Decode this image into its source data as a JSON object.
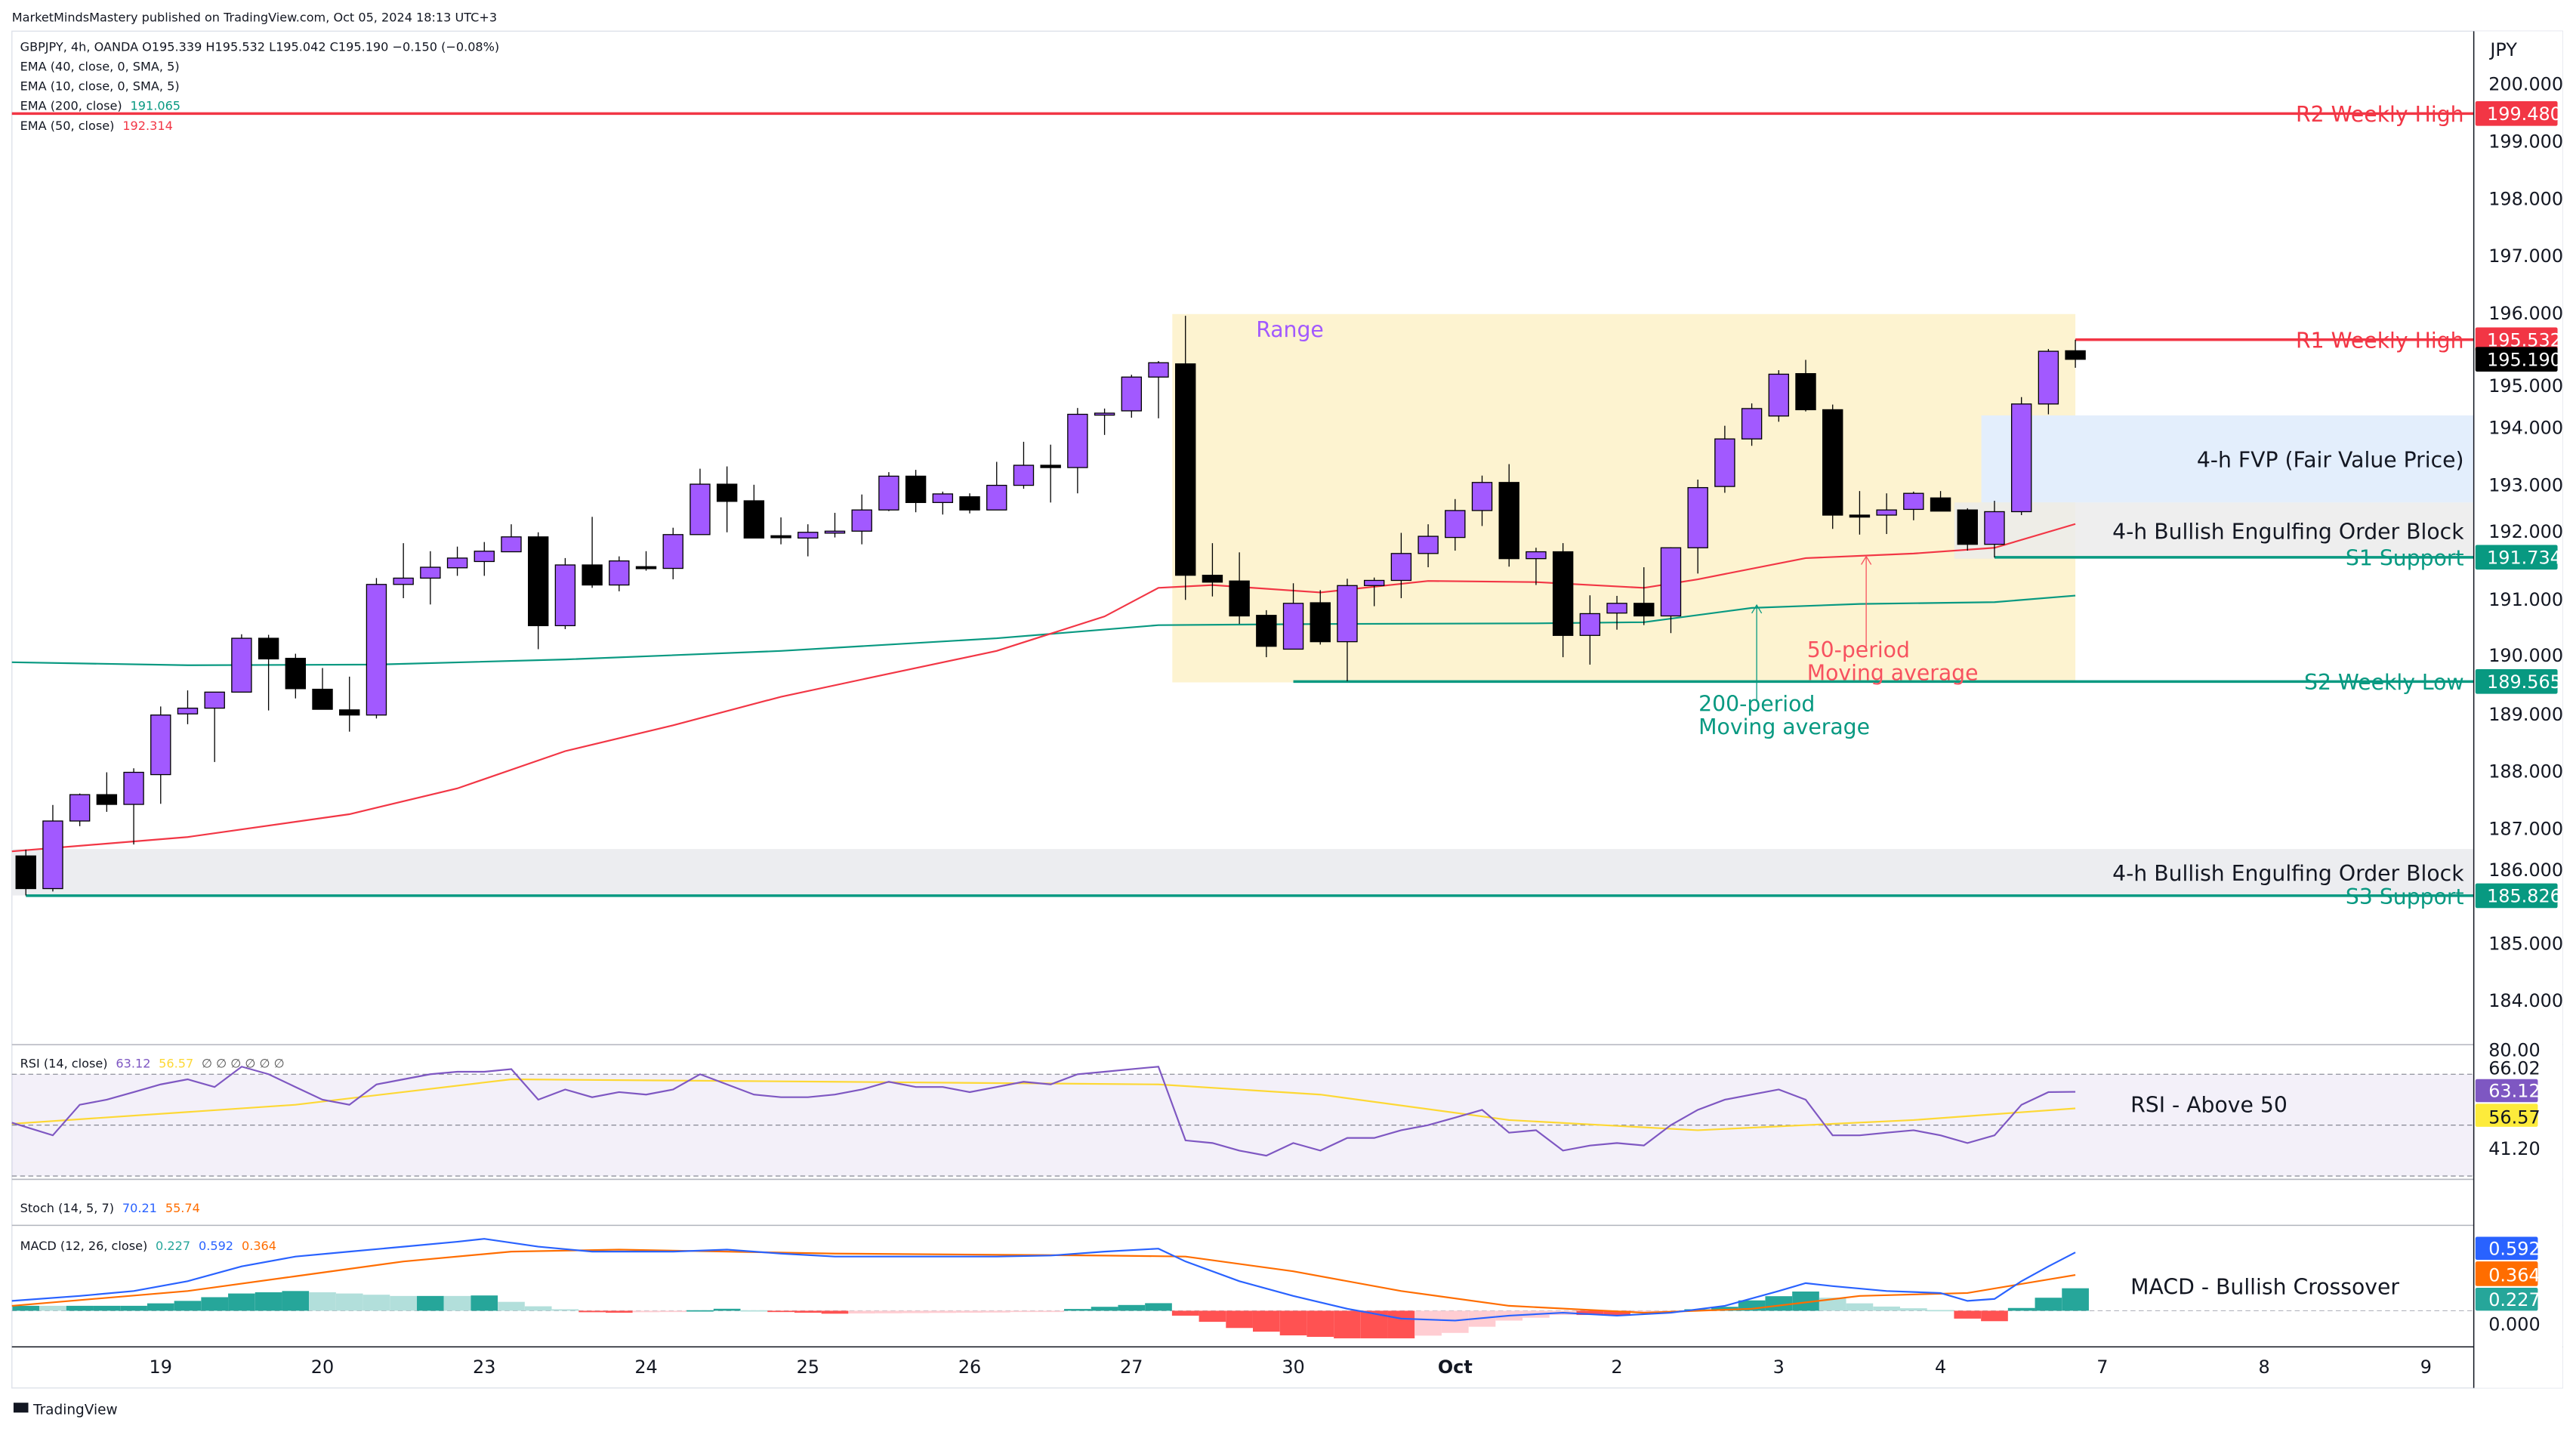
{
  "header": {
    "publisher": "MarketMindsMastery published on TradingView.com, Oct 05, 2024 18:13 UTC+3",
    "symbol_line": "GBPJPY, 4h, OANDA  O195.339  H195.532  L195.042  C195.190  −0.150 (−0.08%)",
    "indicators": [
      {
        "label": "EMA (40, close, 0, SMA, 5)",
        "value": ""
      },
      {
        "label": "EMA (10, close, 0, SMA, 5)",
        "value": ""
      },
      {
        "label": "EMA (200, close)",
        "value": "191.065",
        "color": "#089981"
      },
      {
        "label": "EMA (50, close)",
        "value": "192.314",
        "color": "#f23645"
      }
    ]
  },
  "price_axis": {
    "currency": "JPY",
    "ticks": [
      "184.000",
      "185.000",
      "186.000",
      "187.000",
      "188.000",
      "189.000",
      "190.000",
      "191.000",
      "192.000",
      "193.000",
      "194.000",
      "195.000",
      "196.000",
      "197.000",
      "198.000",
      "199.000",
      "200.000"
    ],
    "badges": [
      {
        "value": "199.480",
        "color": "#f23645"
      },
      {
        "value": "195.532",
        "color": "#f23645"
      },
      {
        "value": "195.190",
        "color": "#000000"
      },
      {
        "value": "191.734",
        "color": "#089981"
      },
      {
        "value": "189.565",
        "color": "#089981"
      },
      {
        "value": "185.826",
        "color": "#089981"
      }
    ]
  },
  "levels": [
    {
      "label": "R2 Weekly High",
      "price": 199.48,
      "color": "#f23645",
      "from_bar": -1
    },
    {
      "label": "R1 Weekly High",
      "price": 195.532,
      "color": "#f23645",
      "from_bar": 76
    },
    {
      "label": "S1 Support",
      "price": 191.734,
      "color": "#089981",
      "from_bar": 73
    },
    {
      "label": "S2 Weekly Low",
      "price": 189.565,
      "color": "#089981",
      "from_bar": 47
    },
    {
      "label": "S3 Support",
      "price": 185.826,
      "color": "#089981",
      "from_bar": 0
    }
  ],
  "zones": [
    {
      "label": "Range",
      "top": 195.98,
      "bottom": 189.55,
      "from_bar": 43,
      "to_bar": 76,
      "color": "#fdf3d0",
      "text_color": "#a259ff"
    },
    {
      "label": "4-h FVP (Fair Value Price)",
      "top": 194.21,
      "bottom": 192.69,
      "from_bar": 73,
      "color": "#e3eefc",
      "text_color": "#131722"
    },
    {
      "label": "4-h Bullish Engulfing Order Block",
      "top": 192.69,
      "bottom": 191.71,
      "from_bar": 72,
      "color": "#ebebeb",
      "text_color": "#131722"
    },
    {
      "label": "4-h Bullish Engulfing Order Block",
      "top": 186.64,
      "bottom": 185.83,
      "from_bar": -1,
      "color": "#ecedf0",
      "text_color": "#131722"
    }
  ],
  "annotations": [
    {
      "line1": "50-period",
      "line2": "Moving average",
      "color": "#f7525f",
      "bar": 68,
      "arrow_to": 191.75
    },
    {
      "line1": "200-period",
      "line2": "Moving average",
      "color": "#089981",
      "bar": 64,
      "arrow_to": 190.9
    }
  ],
  "time_axis": [
    {
      "label": "19",
      "bar": 5
    },
    {
      "label": "20",
      "bar": 11
    },
    {
      "label": "23",
      "bar": 17
    },
    {
      "label": "24",
      "bar": 23
    },
    {
      "label": "25",
      "bar": 29
    },
    {
      "label": "26",
      "bar": 35
    },
    {
      "label": "27",
      "bar": 41
    },
    {
      "label": "30",
      "bar": 47
    },
    {
      "label": "Oct",
      "bar": 53
    },
    {
      "label": "2",
      "bar": 59
    },
    {
      "label": "3",
      "bar": 65
    },
    {
      "label": "4",
      "bar": 71
    },
    {
      "label": "7",
      "bar": 77
    },
    {
      "label": "8",
      "bar": 83
    },
    {
      "label": "9",
      "bar": 89
    }
  ],
  "chart_data": {
    "type": "candlestick",
    "up_color": "#a259ff",
    "down_color": "#000000",
    "ohlc": [
      [
        186.52,
        186.63,
        185.83,
        185.95
      ],
      [
        185.95,
        187.41,
        185.9,
        187.13
      ],
      [
        187.13,
        187.61,
        187.04,
        187.59
      ],
      [
        187.59,
        187.98,
        187.29,
        187.42
      ],
      [
        187.42,
        188.05,
        186.72,
        187.98
      ],
      [
        187.94,
        189.13,
        187.43,
        188.98
      ],
      [
        189.0,
        189.41,
        188.82,
        189.1
      ],
      [
        189.1,
        189.38,
        188.16,
        189.38
      ],
      [
        189.38,
        190.39,
        189.38,
        190.32
      ],
      [
        190.32,
        190.38,
        189.06,
        189.96
      ],
      [
        189.97,
        190.05,
        189.27,
        189.44
      ],
      [
        189.43,
        189.8,
        189.08,
        189.08
      ],
      [
        189.07,
        189.65,
        188.69,
        188.98
      ],
      [
        188.98,
        191.37,
        188.92,
        191.26
      ],
      [
        191.26,
        191.98,
        191.02,
        191.37
      ],
      [
        191.37,
        191.84,
        190.91,
        191.56
      ],
      [
        191.55,
        191.92,
        191.41,
        191.72
      ],
      [
        191.66,
        192.0,
        191.41,
        191.84
      ],
      [
        191.83,
        192.31,
        191.83,
        192.09
      ],
      [
        192.09,
        192.17,
        190.13,
        190.54
      ],
      [
        190.54,
        191.72,
        190.48,
        191.6
      ],
      [
        191.6,
        192.44,
        191.2,
        191.25
      ],
      [
        191.25,
        191.75,
        191.14,
        191.67
      ],
      [
        191.57,
        191.84,
        191.5,
        191.54
      ],
      [
        191.54,
        192.25,
        191.35,
        192.13
      ],
      [
        192.13,
        193.28,
        192.13,
        193.01
      ],
      [
        193.01,
        193.32,
        192.17,
        192.71
      ],
      [
        192.72,
        193.0,
        192.07,
        192.07
      ],
      [
        192.11,
        192.43,
        191.96,
        192.09
      ],
      [
        192.07,
        192.31,
        191.75,
        192.17
      ],
      [
        192.17,
        192.51,
        192.08,
        192.19
      ],
      [
        192.19,
        192.83,
        191.96,
        192.56
      ],
      [
        192.56,
        193.22,
        192.54,
        193.15
      ],
      [
        193.15,
        193.26,
        192.52,
        192.69
      ],
      [
        192.69,
        192.88,
        192.48,
        192.84
      ],
      [
        192.79,
        192.85,
        192.5,
        192.56
      ],
      [
        192.56,
        193.4,
        192.56,
        192.99
      ],
      [
        192.99,
        193.75,
        192.93,
        193.34
      ],
      [
        193.34,
        193.7,
        192.69,
        193.3
      ],
      [
        193.3,
        194.34,
        192.85,
        194.23
      ],
      [
        194.23,
        194.33,
        193.87,
        194.25
      ],
      [
        194.29,
        194.92,
        194.17,
        194.88
      ],
      [
        194.88,
        195.16,
        194.16,
        195.13
      ],
      [
        195.11,
        195.95,
        190.99,
        191.42
      ],
      [
        191.42,
        191.98,
        191.05,
        191.3
      ],
      [
        191.32,
        191.82,
        190.57,
        190.71
      ],
      [
        190.72,
        190.81,
        189.99,
        190.18
      ],
      [
        190.13,
        191.28,
        190.13,
        190.93
      ],
      [
        190.94,
        191.16,
        190.21,
        190.26
      ],
      [
        190.26,
        191.36,
        189.57,
        191.24
      ],
      [
        191.24,
        191.38,
        190.88,
        191.33
      ],
      [
        191.33,
        192.16,
        191.02,
        191.8
      ],
      [
        191.8,
        192.31,
        191.56,
        192.1
      ],
      [
        192.08,
        192.75,
        191.85,
        192.55
      ],
      [
        192.55,
        193.16,
        192.28,
        193.04
      ],
      [
        193.04,
        193.36,
        191.57,
        191.71
      ],
      [
        191.71,
        191.9,
        191.25,
        191.83
      ],
      [
        191.83,
        191.98,
        189.99,
        190.37
      ],
      [
        190.37,
        191.07,
        189.86,
        190.75
      ],
      [
        190.76,
        191.06,
        190.47,
        190.93
      ],
      [
        190.93,
        191.56,
        190.55,
        190.71
      ],
      [
        190.71,
        191.91,
        190.41,
        191.9
      ],
      [
        191.9,
        193.09,
        191.45,
        192.95
      ],
      [
        192.97,
        194.03,
        192.86,
        193.8
      ],
      [
        193.8,
        194.42,
        193.68,
        194.33
      ],
      [
        194.2,
        195.0,
        194.1,
        194.93
      ],
      [
        194.94,
        195.18,
        194.28,
        194.31
      ],
      [
        194.31,
        194.4,
        192.23,
        192.47
      ],
      [
        192.47,
        192.89,
        192.13,
        192.46
      ],
      [
        192.47,
        192.85,
        192.14,
        192.56
      ],
      [
        192.57,
        192.88,
        192.38,
        192.85
      ],
      [
        192.77,
        192.89,
        192.54,
        192.54
      ],
      [
        192.56,
        192.59,
        191.85,
        191.96
      ],
      [
        191.96,
        192.72,
        191.73,
        192.53
      ],
      [
        192.53,
        194.53,
        192.47,
        194.41
      ],
      [
        194.41,
        195.37,
        194.23,
        195.33
      ],
      [
        195.339,
        195.532,
        195.042,
        195.19
      ]
    ],
    "ema50": [
      [
        0,
        186.6
      ],
      [
        6,
        186.85
      ],
      [
        12,
        187.25
      ],
      [
        16,
        187.7
      ],
      [
        20,
        188.35
      ],
      [
        24,
        188.8
      ],
      [
        28,
        189.3
      ],
      [
        32,
        189.7
      ],
      [
        36,
        190.1
      ],
      [
        40,
        190.7
      ],
      [
        42,
        191.2
      ],
      [
        44,
        191.25
      ],
      [
        48,
        191.12
      ],
      [
        52,
        191.32
      ],
      [
        56,
        191.3
      ],
      [
        60,
        191.2
      ],
      [
        62,
        191.35
      ],
      [
        66,
        191.72
      ],
      [
        70,
        191.8
      ],
      [
        73,
        191.9
      ],
      [
        76,
        192.314
      ]
    ],
    "ema200": [
      [
        0,
        189.9
      ],
      [
        6,
        189.85
      ],
      [
        13,
        189.86
      ],
      [
        20,
        189.95
      ],
      [
        28,
        190.1
      ],
      [
        36,
        190.32
      ],
      [
        42,
        190.55
      ],
      [
        48,
        190.57
      ],
      [
        56,
        190.58
      ],
      [
        60,
        190.6
      ],
      [
        64,
        190.85
      ],
      [
        68,
        190.92
      ],
      [
        73,
        190.95
      ],
      [
        76,
        191.065
      ]
    ],
    "rsi": {
      "label": "RSI (14, close)",
      "value": "63.12",
      "ma_value": "56.57",
      "extra": "∅ ∅ ∅ ∅ ∅ ∅",
      "note": "RSI - Above 50",
      "levels": [
        70,
        50,
        30
      ],
      "line_color": "#7e57c2",
      "ma_color": "#fdd835",
      "axis_ticks": [
        "80.00",
        "66.02",
        "41.20"
      ],
      "values": [
        51,
        46,
        58,
        60,
        63,
        66,
        68,
        65,
        73,
        70,
        65,
        60,
        58,
        66,
        68,
        70,
        71,
        71,
        72,
        60,
        64,
        61,
        63,
        62,
        64,
        70,
        66,
        62,
        61,
        61,
        62,
        64,
        67,
        65,
        65,
        63,
        65,
        67,
        66,
        70,
        71,
        72,
        73,
        44,
        43,
        40,
        38,
        43,
        40,
        45,
        45,
        48,
        50,
        53,
        56,
        47,
        48,
        40,
        42,
        43,
        42,
        50,
        56,
        60,
        62,
        64,
        60,
        46,
        46,
        47,
        48,
        46,
        43,
        46,
        58,
        63,
        63.12
      ],
      "ma": [
        [
          0,
          50.5
        ],
        [
          10,
          58
        ],
        [
          18,
          68
        ],
        [
          30,
          67
        ],
        [
          42,
          66
        ],
        [
          48,
          62
        ],
        [
          55,
          52
        ],
        [
          62,
          48
        ],
        [
          70,
          52
        ],
        [
          76,
          56.57
        ]
      ]
    },
    "stoch": {
      "label": "Stoch (14, 5, 7)",
      "k": "70.21",
      "d": "55.74",
      "k_color": "#2962ff",
      "d_color": "#ff6d00"
    },
    "macd": {
      "label": "MACD (12, 26, close)",
      "hist_value": "0.227",
      "macd_value": "0.592",
      "signal_value": "0.364",
      "note": "MACD - Bullish Crossover",
      "axis_tick": "0.000",
      "macd_color": "#2962ff",
      "signal_color": "#ff6d00",
      "macd": [
        [
          0,
          0.1
        ],
        [
          2,
          0.15
        ],
        [
          4,
          0.2
        ],
        [
          6,
          0.3
        ],
        [
          8,
          0.45
        ],
        [
          10,
          0.55
        ],
        [
          12,
          0.6
        ],
        [
          14,
          0.65
        ],
        [
          16,
          0.7
        ],
        [
          17,
          0.73
        ],
        [
          19,
          0.65
        ],
        [
          21,
          0.6
        ],
        [
          24,
          0.6
        ],
        [
          26,
          0.62
        ],
        [
          28,
          0.58
        ],
        [
          30,
          0.55
        ],
        [
          36,
          0.55
        ],
        [
          38,
          0.56
        ],
        [
          40,
          0.6
        ],
        [
          42,
          0.63
        ],
        [
          43,
          0.5
        ],
        [
          45,
          0.3
        ],
        [
          47,
          0.15
        ],
        [
          49,
          0.02
        ],
        [
          51,
          -0.08
        ],
        [
          53,
          -0.1
        ],
        [
          55,
          -0.05
        ],
        [
          57,
          -0.02
        ],
        [
          59,
          -0.05
        ],
        [
          61,
          -0.02
        ],
        [
          63,
          0.05
        ],
        [
          65,
          0.2
        ],
        [
          66,
          0.28
        ],
        [
          67,
          0.25
        ],
        [
          69,
          0.2
        ],
        [
          71,
          0.18
        ],
        [
          72,
          0.1
        ],
        [
          73,
          0.12
        ],
        [
          74,
          0.3
        ],
        [
          75,
          0.45
        ],
        [
          76,
          0.592
        ]
      ],
      "signal": [
        [
          0,
          0.05
        ],
        [
          6,
          0.2
        ],
        [
          10,
          0.35
        ],
        [
          14,
          0.5
        ],
        [
          18,
          0.6
        ],
        [
          22,
          0.62
        ],
        [
          30,
          0.58
        ],
        [
          40,
          0.56
        ],
        [
          43,
          0.55
        ],
        [
          47,
          0.4
        ],
        [
          51,
          0.2
        ],
        [
          55,
          0.05
        ],
        [
          60,
          -0.02
        ],
        [
          64,
          0.02
        ],
        [
          68,
          0.15
        ],
        [
          72,
          0.18
        ],
        [
          76,
          0.364
        ]
      ]
    }
  },
  "footer": {
    "brand": "TradingView"
  }
}
